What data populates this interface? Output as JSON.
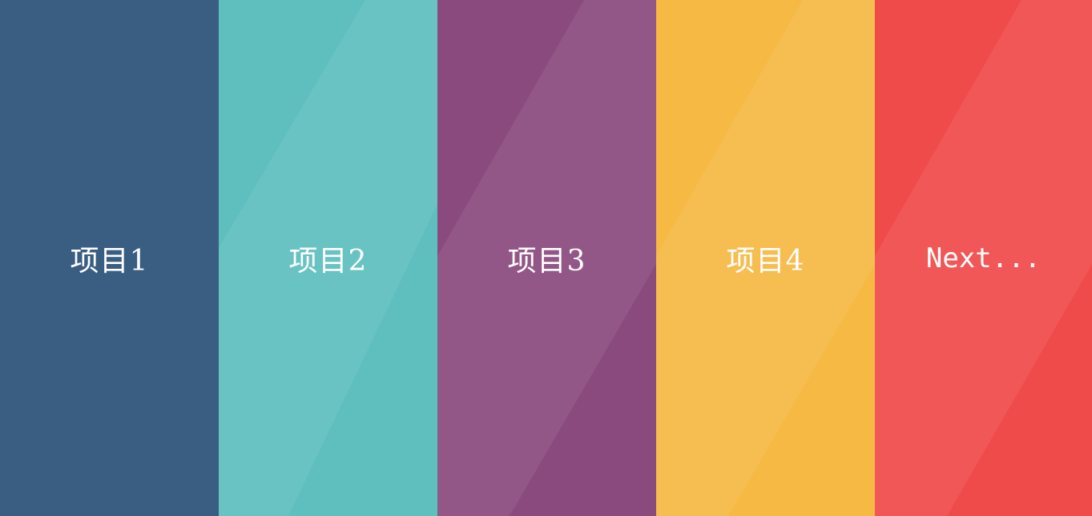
{
  "panels": [
    {
      "label": "项目1",
      "color": "#3a5e82",
      "highlight": "rgba(255,255,255,0.00)"
    },
    {
      "label": "项目2",
      "color": "#5ebfbe",
      "highlight": "rgba(255,255,255,0.07)"
    },
    {
      "label": "项目3",
      "color": "#8a4a7e",
      "highlight": "rgba(255,255,255,0.07)"
    },
    {
      "label": "项目4",
      "color": "#f6b944",
      "highlight": "rgba(255,255,255,0.07)"
    },
    {
      "label": "Next...",
      "color": "#f04b4b",
      "highlight": "rgba(255,255,255,0.07)"
    }
  ]
}
